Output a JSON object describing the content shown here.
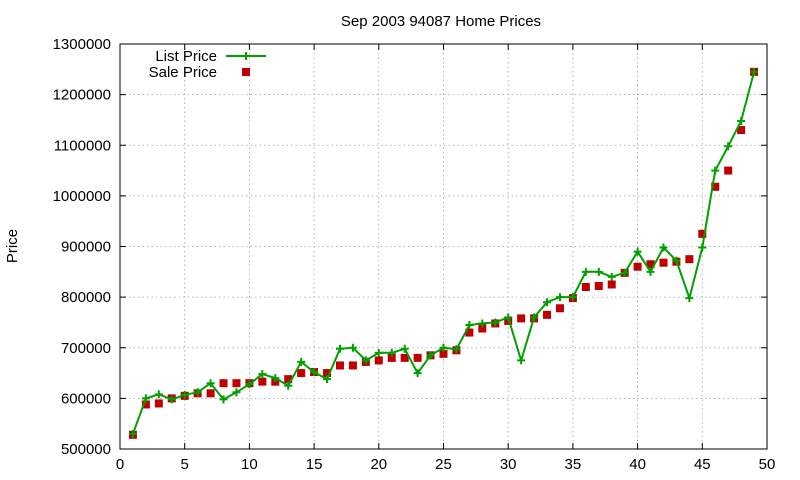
{
  "chart_data": {
    "type": "line",
    "title": "Sep 2003 94087 Home Prices",
    "xlabel": "",
    "ylabel": "Price",
    "xlim": [
      0,
      50
    ],
    "ylim": [
      500000,
      1300000
    ],
    "x_ticks": [
      "0",
      "5",
      "10",
      "15",
      "20",
      "25",
      "30",
      "35",
      "40",
      "45",
      "50"
    ],
    "y_ticks": [
      "500000",
      "600000",
      "700000",
      "800000",
      "900000",
      "1000000",
      "1100000",
      "1200000",
      "1300000"
    ],
    "grid": true,
    "legend_position": "top-left",
    "series": [
      {
        "name": "List Price",
        "style": "line+cross",
        "color": "#00a000",
        "x": [
          1,
          2,
          3,
          4,
          5,
          6,
          7,
          8,
          9,
          10,
          11,
          12,
          13,
          14,
          15,
          16,
          17,
          18,
          19,
          20,
          21,
          22,
          23,
          24,
          25,
          26,
          27,
          28,
          29,
          30,
          31,
          32,
          33,
          34,
          35,
          36,
          37,
          38,
          39,
          40,
          41,
          42,
          43,
          44,
          45,
          46,
          47,
          48,
          49
        ],
        "values": [
          530000,
          600000,
          608000,
          598000,
          607000,
          612000,
          630000,
          598000,
          612000,
          628000,
          648000,
          640000,
          625000,
          672000,
          652000,
          638000,
          698000,
          700000,
          675000,
          690000,
          690000,
          698000,
          650000,
          685000,
          700000,
          697000,
          745000,
          748000,
          750000,
          760000,
          675000,
          760000,
          790000,
          800000,
          800000,
          850000,
          850000,
          840000,
          848000,
          890000,
          850000,
          898000,
          872000,
          798000,
          898000,
          1050000,
          1098000,
          1148000,
          1245000
        ]
      },
      {
        "name": "Sale Price",
        "style": "square",
        "color": "#c00000",
        "x": [
          1,
          2,
          3,
          4,
          5,
          6,
          7,
          8,
          9,
          10,
          11,
          12,
          13,
          14,
          15,
          16,
          17,
          18,
          19,
          20,
          21,
          22,
          23,
          24,
          25,
          26,
          27,
          28,
          29,
          30,
          31,
          32,
          33,
          34,
          35,
          36,
          37,
          38,
          39,
          40,
          41,
          42,
          43,
          44,
          45,
          46,
          47,
          48,
          49
        ],
        "values": [
          528000,
          588000,
          590000,
          600000,
          605000,
          610000,
          610000,
          630000,
          630000,
          630000,
          633000,
          633000,
          638000,
          650000,
          652000,
          650000,
          665000,
          665000,
          672000,
          675000,
          680000,
          680000,
          680000,
          685000,
          688000,
          695000,
          730000,
          738000,
          748000,
          753000,
          758000,
          758000,
          765000,
          778000,
          798000,
          820000,
          822000,
          825000,
          848000,
          860000,
          865000,
          868000,
          870000,
          875000,
          925000,
          1018000,
          1050000,
          1130000,
          1245000
        ]
      }
    ]
  }
}
